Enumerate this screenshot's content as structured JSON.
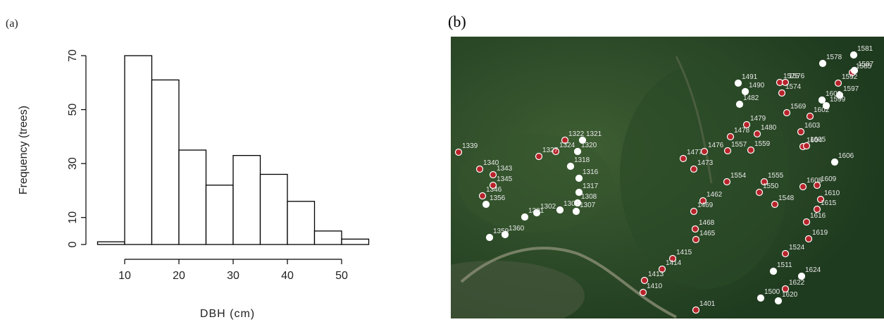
{
  "chart_data": [
    {
      "type": "histogram",
      "panel": "(a)",
      "xlabel": "DBH (cm)",
      "ylabel": "Frequency (trees)",
      "bins": [
        5,
        10,
        15,
        20,
        25,
        30,
        35,
        40,
        45,
        50,
        55
      ],
      "values": [
        1,
        70,
        61,
        35,
        22,
        33,
        26,
        16,
        5,
        2
      ],
      "color": "#ffffff",
      "xlim": [
        5,
        55
      ],
      "ylim": [
        0,
        70
      ],
      "xticks": [
        10,
        20,
        30,
        40,
        50
      ],
      "yticks": [
        0,
        10,
        30,
        50,
        70
      ]
    },
    {
      "type": "scatter",
      "panel": "(b)",
      "xlim": [
        0,
        615
      ],
      "ylim": [
        400,
        0
      ],
      "series": [
        {
          "color": "#b8232a",
          "labels": [
            "1339",
            "1322",
            "1324",
            "1327",
            "1346",
            "1345",
            "1340",
            "1343",
            "1575",
            "1576",
            "1574",
            "1569",
            "1479",
            "1480",
            "1478",
            "1557",
            "1559",
            "1476",
            "1477",
            "1473",
            "1585",
            "1592",
            "1602",
            "1603",
            "1604",
            "1605",
            "1608",
            "1609",
            "1610",
            "1615",
            "1616",
            "1619",
            "1622",
            "1554",
            "1555",
            "1550",
            "1548",
            "1462",
            "1469",
            "1468",
            "1465",
            "1524",
            "1415",
            "1414",
            "1413",
            "1410",
            "1401"
          ],
          "x": [
            11,
            162,
            149,
            125,
            45,
            60,
            41,
            60,
            467,
            475,
            470,
            477,
            420,
            435,
            397,
            393,
            426,
            360,
            330,
            345,
            570,
            550,
            510,
            497,
            500,
            505,
            500,
            520,
            525,
            520,
            505,
            508,
            475,
            392,
            445,
            438,
            460,
            358,
            345,
            347,
            348,
            475,
            315,
            300,
            275,
            273,
            348
          ],
          "y": [
            164,
            147,
            163,
            170,
            226,
            211,
            188,
            196,
            65,
            65,
            80,
            108,
            125,
            138,
            142,
            162,
            161,
            163,
            173,
            188,
            51,
            66,
            113,
            135,
            156,
            155,
            213,
            211,
            231,
            245,
            263,
            287,
            358,
            206,
            206,
            221,
            238,
            233,
            248,
            273,
            288,
            308,
            315,
            330,
            346,
            363,
            388
          ]
        },
        {
          "color": "#ffffff",
          "labels": [
            "1321",
            "1320",
            "1318",
            "1316",
            "1317",
            "1308",
            "1307",
            "1304",
            "1302",
            "1301",
            "1360",
            "1359",
            "1356",
            "1491",
            "1490",
            "1482",
            "1581",
            "1578",
            "1587",
            "1597",
            "1599",
            "1600",
            "1606",
            "1624",
            "1620",
            "1511",
            "1500"
          ],
          "x": [
            187,
            180,
            170,
            182,
            182,
            180,
            178,
            155,
            122,
            105,
            77,
            55,
            50,
            408,
            418,
            410,
            572,
            528,
            573,
            552,
            533,
            527,
            545,
            498,
            465,
            458,
            440
          ],
          "y": [
            147,
            163,
            184,
            201,
            221,
            236,
            248,
            246,
            250,
            256,
            281,
            285,
            238,
            66,
            78,
            96,
            26,
            38,
            48,
            83,
            98,
            90,
            178,
            340,
            375,
            333,
            371
          ]
        }
      ]
    }
  ]
}
